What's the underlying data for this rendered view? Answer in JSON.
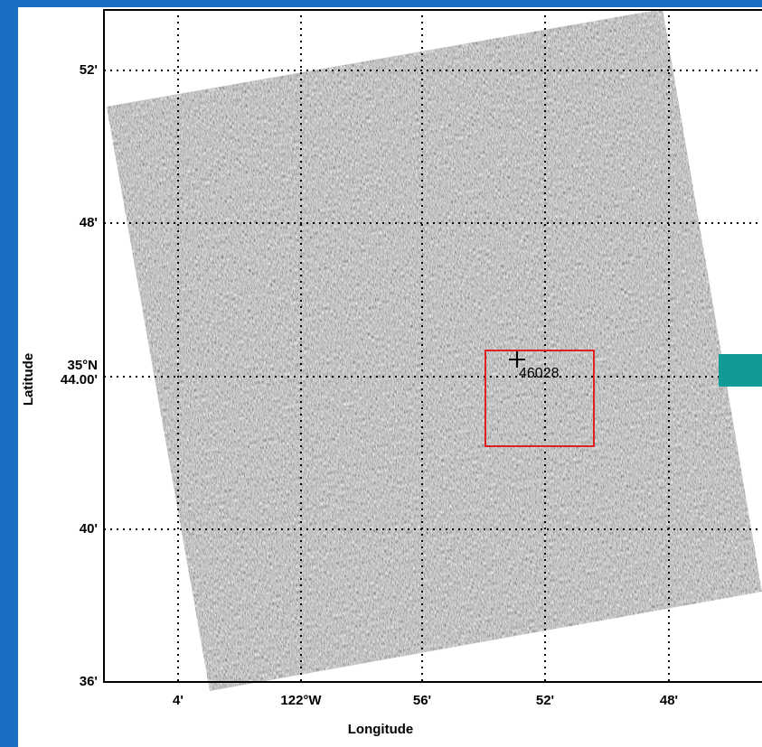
{
  "buoy_label": "46028",
  "latitude_ticks": [
    "52'",
    "48'",
    "35°N",
    "44.00'",
    "40'",
    "36'"
  ],
  "longitude_ticks": [
    "4'",
    "122°W",
    "56'",
    "52'",
    "48'"
  ],
  "x_axis_label": "Longitude",
  "y_axis_label": "Latitude"
}
